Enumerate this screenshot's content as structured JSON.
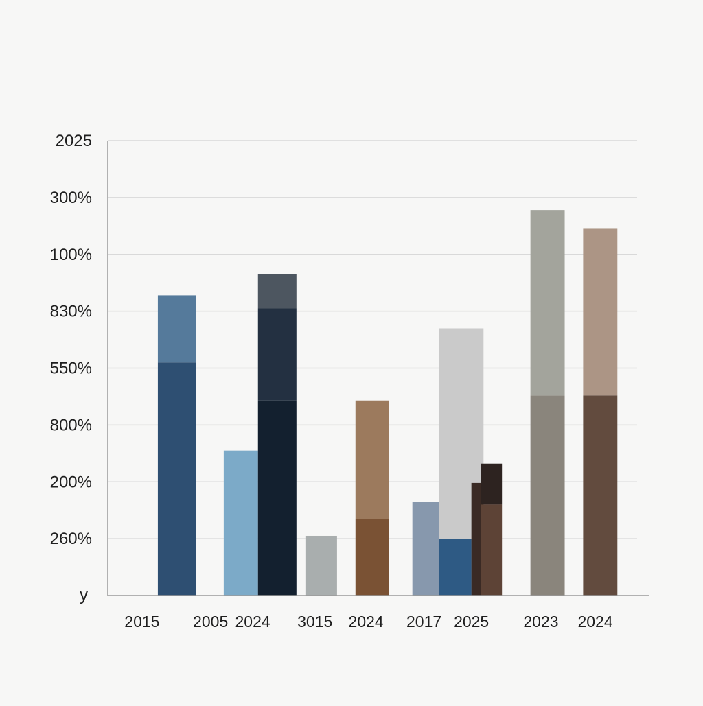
{
  "chart_data": {
    "type": "bar",
    "title": "",
    "ylabel": "y",
    "xlabel": "",
    "ylim": [
      0,
      8
    ],
    "grid": true,
    "legend": "none",
    "y_tick_labels": [
      "260%",
      "200%",
      "800%",
      "550%",
      "830%",
      "100%",
      "300%",
      "2025"
    ],
    "x_tick_labels": [
      "2015",
      "2005",
      "2024",
      "3015",
      "2024",
      "2017",
      "2025",
      "2023",
      "2024"
    ],
    "bars": [
      {
        "name": "2015 a lower",
        "x": 0.95,
        "w": 0.73,
        "y0": 0,
        "y1": 4.1,
        "color": "#2e4f72"
      },
      {
        "name": "2015 a upper",
        "x": 0.95,
        "w": 0.73,
        "y0": 4.1,
        "y1": 5.28,
        "color": "#557a9b"
      },
      {
        "name": "2005 light",
        "x": 2.2,
        "w": 0.65,
        "y0": 0,
        "y1": 2.55,
        "color": "#7caac8"
      },
      {
        "name": "2005 dark lower",
        "x": 2.85,
        "w": 0.73,
        "y0": 0,
        "y1": 3.43,
        "color": "#13202f"
      },
      {
        "name": "2005 dark mid",
        "x": 2.85,
        "w": 0.73,
        "y0": 3.43,
        "y1": 5.05,
        "color": "#233041"
      },
      {
        "name": "2005 dark top",
        "x": 2.85,
        "w": 0.73,
        "y0": 5.05,
        "y1": 5.65,
        "color": "#4d5660"
      },
      {
        "name": "3015 grey",
        "x": 3.75,
        "w": 0.6,
        "y0": 0,
        "y1": 1.05,
        "color": "#a9aeae"
      },
      {
        "name": "2024 brown lower",
        "x": 4.7,
        "w": 0.63,
        "y0": 0,
        "y1": 1.35,
        "color": "#7a5234"
      },
      {
        "name": "2024 brown upper",
        "x": 4.7,
        "w": 0.63,
        "y0": 1.35,
        "y1": 3.43,
        "color": "#9c7a5d"
      },
      {
        "name": "2017 slate",
        "x": 5.78,
        "w": 0.5,
        "y0": 0,
        "y1": 1.65,
        "color": "#8798ad"
      },
      {
        "name": "2017 light grey",
        "x": 6.28,
        "w": 0.85,
        "y0": 0,
        "y1": 4.7,
        "color": "#cacaca"
      },
      {
        "name": "2017 blue",
        "x": 6.28,
        "w": 0.62,
        "y0": 0,
        "y1": 1.0,
        "color": "#2e5a84"
      },
      {
        "name": "2025 darkest",
        "x": 6.9,
        "w": 0.23,
        "y0": 0,
        "y1": 1.98,
        "color": "#3a2a24"
      },
      {
        "name": "2025 dark top",
        "x": 7.08,
        "w": 0.4,
        "y0": 1.6,
        "y1": 2.32,
        "color": "#2d2320"
      },
      {
        "name": "2025 dark brown",
        "x": 7.08,
        "w": 0.4,
        "y0": 0,
        "y1": 1.6,
        "color": "#5d4336"
      },
      {
        "name": "2023 grey lower",
        "x": 8.02,
        "w": 0.65,
        "y0": 0,
        "y1": 3.52,
        "color": "#8a857c"
      },
      {
        "name": "2023 grey upper",
        "x": 8.02,
        "w": 0.65,
        "y0": 3.52,
        "y1": 6.78,
        "color": "#a3a49c"
      },
      {
        "name": "2024 taupe lower",
        "x": 9.02,
        "w": 0.65,
        "y0": 0,
        "y1": 3.52,
        "color": "#624b3e"
      },
      {
        "name": "2024 taupe upper",
        "x": 9.02,
        "w": 0.65,
        "y0": 3.52,
        "y1": 6.45,
        "color": "#ac9585"
      }
    ]
  }
}
